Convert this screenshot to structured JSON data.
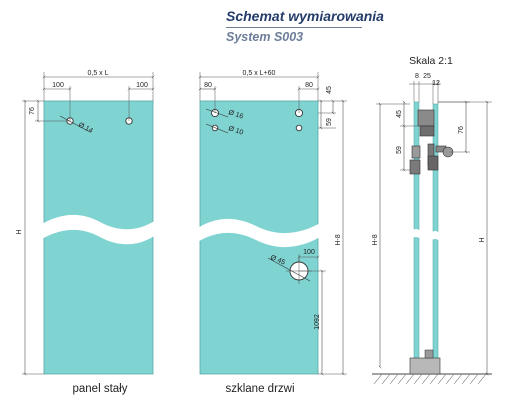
{
  "header": {
    "title": "Schemat wymiarowania",
    "subtitle": "System S003"
  },
  "colors": {
    "glass": "#7fd3d1",
    "glass_edge": "#4d9f9f",
    "title": "#243c6a",
    "subtitle": "#6d7d98",
    "dimension_line": "#555555"
  },
  "panel_fixed": {
    "caption": "panel stały",
    "dim_top_total": "0,5 x L",
    "dim_left_offset": "100",
    "dim_right_offset": "100",
    "dim_hole_height": "76",
    "dim_hole_diameter": "Ø 14",
    "dim_height": "H"
  },
  "panel_door": {
    "caption": "szklane drzwi",
    "dim_top_total": "0,5 x L+60",
    "dim_left_offset": "80",
    "dim_right_offset": "80",
    "dim_right_top": "45",
    "dim_right_hole_spacing": "59",
    "dim_hole_large": "Ø 16",
    "dim_hole_small": "Ø 10",
    "dim_height": "H-8",
    "dim_handle_offset": "100",
    "dim_handle_diameter": "Ø 45",
    "dim_handle_height": "1092"
  },
  "side_view": {
    "title": "Skala 2:1",
    "dim_top_a": "8",
    "dim_top_b": "25",
    "dim_top_c": "12",
    "dim_45": "45",
    "dim_59": "59",
    "dim_76": "76",
    "dim_height_door": "H-8",
    "dim_height_total": "H"
  }
}
